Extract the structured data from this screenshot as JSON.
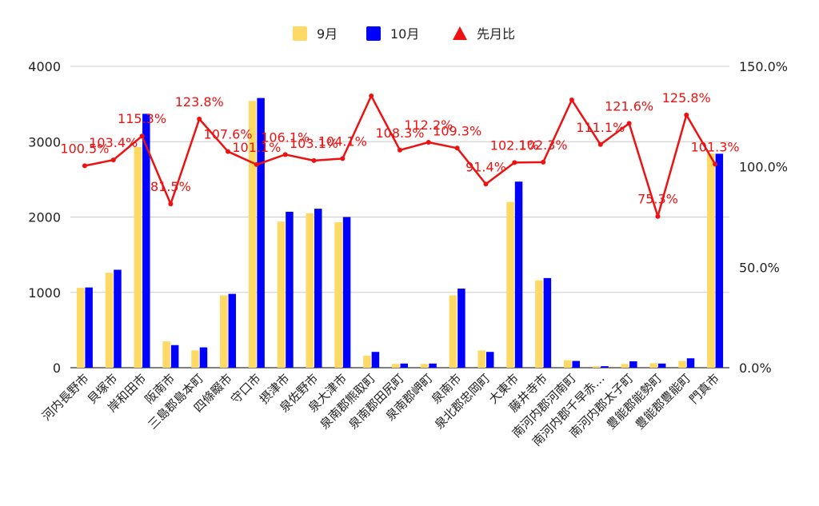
{
  "chart_data": {
    "type": "bar",
    "categories": [
      "河内長野市",
      "貝塚市",
      "岸和田市",
      "阪南市",
      "三島郡島本町",
      "四條畷市",
      "守口市",
      "摂津市",
      "泉佐野市",
      "泉大津市",
      "泉南郡熊取町",
      "泉南郡田尻町",
      "泉南郡岬町",
      "泉南市",
      "泉北郡忠岡町",
      "大東市",
      "藤井寺市",
      "南河内郡河南町",
      "南河内郡千早赤…",
      "南河内郡太子町",
      "豊能郡能勢町",
      "豊能郡豊能町",
      "門真市"
    ],
    "series": [
      {
        "name": "9月",
        "axis": "left",
        "color": "#ffd966",
        "values": [
          1060,
          1260,
          2930,
          350,
          230,
          960,
          3540,
          1940,
          2050,
          1930,
          160,
          50,
          50,
          960,
          230,
          2200,
          1160,
          100,
          20,
          50,
          60,
          90,
          2840
        ]
      },
      {
        "name": "10月",
        "axis": "left",
        "color": "#0000ff",
        "values": [
          1065,
          1300,
          3370,
          300,
          270,
          980,
          3580,
          2070,
          2110,
          2000,
          210,
          55,
          55,
          1050,
          210,
          2470,
          1190,
          90,
          20,
          85,
          55,
          125,
          2840
        ]
      },
      {
        "name": "先月比",
        "type": "line",
        "axis": "right",
        "color": "#ee1111",
        "values": [
          100.5,
          103.4,
          115.3,
          81.5,
          123.8,
          107.6,
          101.1,
          106.1,
          103.1,
          104.1,
          135.3,
          108.3,
          112.2,
          109.3,
          91.4,
          102.1,
          102.3,
          133.3,
          111.1,
          121.6,
          75.3,
          125.8,
          101.3
        ],
        "labels": [
          "100.5%",
          "103.4%",
          "115.3%",
          "81.5%",
          "123.8%",
          "107.6%",
          "101.1%",
          "106.1%",
          "103.1%",
          "104.1%",
          "",
          "108.3%",
          "112.2%",
          "109.3%",
          "91.4%",
          "102.1%",
          "102.3%",
          "",
          "111.1%",
          "121.6%",
          "75.3%",
          "125.8%",
          "101.3%"
        ]
      }
    ],
    "y_left": {
      "min": 0,
      "max": 4000,
      "ticks": [
        "0",
        "1000",
        "2000",
        "3000",
        "4000"
      ]
    },
    "y_right": {
      "min": 0,
      "max": 150,
      "ticks": [
        "0.0%",
        "50.0%",
        "100.0%",
        "150.0%"
      ]
    },
    "grid": true,
    "legend_position": "top",
    "legend": [
      "9月",
      "10月",
      "先月比"
    ]
  }
}
